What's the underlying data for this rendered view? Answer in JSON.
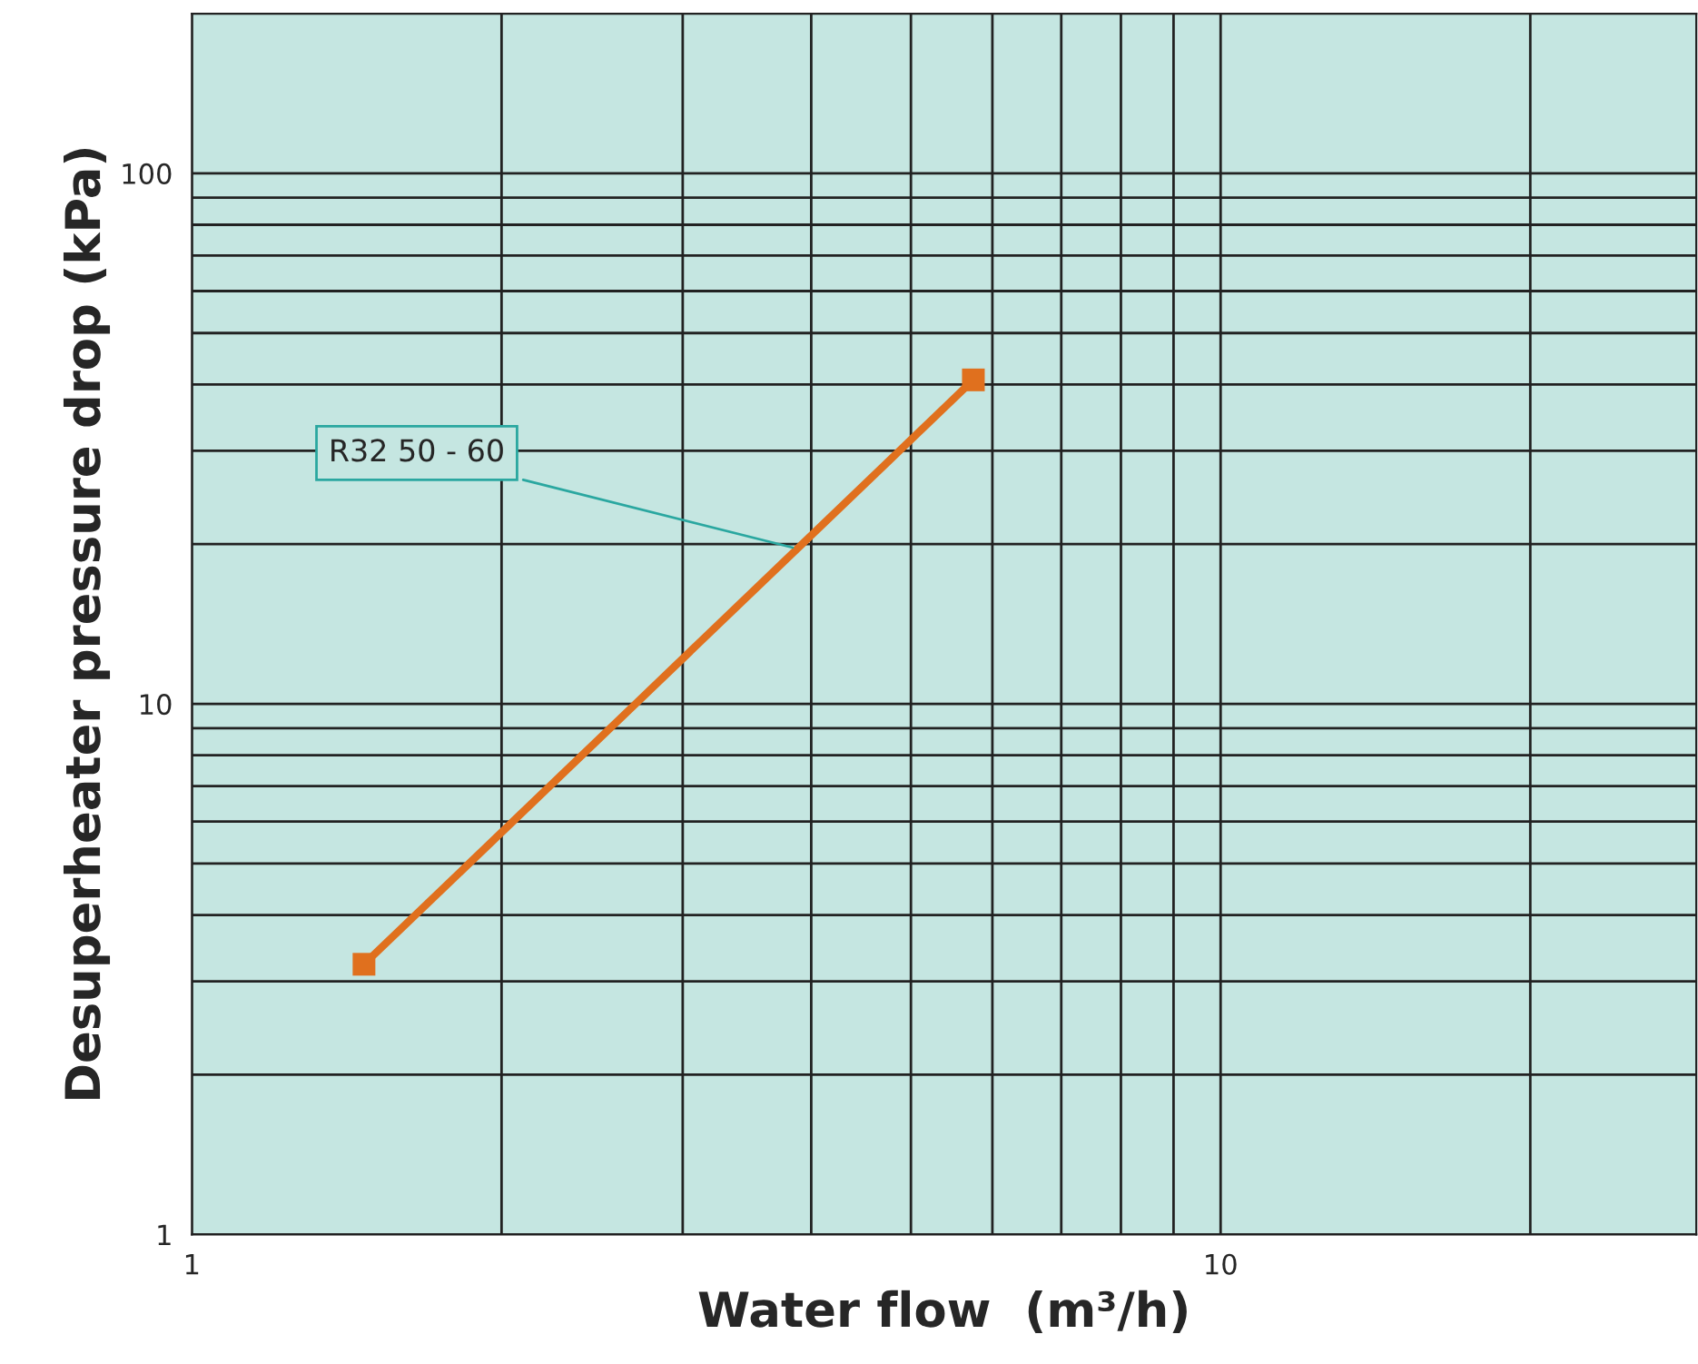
{
  "chart_data": {
    "type": "line",
    "xlabel": "Water flow  (m³/h)",
    "ylabel": "Desuperheater pressure drop (kPa)",
    "log": "xy",
    "x": [
      1.47,
      5.75
    ],
    "series": [
      {
        "color": "#e0701e",
        "values": [
          3.23,
          40.8
        ]
      }
    ],
    "marker": "square",
    "line_style": "solid",
    "grid": true,
    "xlim": [
      1,
      29
    ],
    "ylim": [
      1,
      200
    ],
    "xticks": [
      1,
      {
        "value": 2,
        "label": null
      },
      {
        "value": 3,
        "label": null
      },
      {
        "value": 4,
        "label": null
      },
      {
        "value": 5,
        "label": null
      },
      {
        "value": 6,
        "label": null
      },
      {
        "value": 7,
        "label": null
      },
      {
        "value": 8,
        "label": null
      },
      {
        "value": 9,
        "label": null
      },
      10,
      {
        "value": 20,
        "label": null
      }
    ],
    "yticks": [
      1,
      {
        "value": 2,
        "label": null
      },
      {
        "value": 3,
        "label": null
      },
      {
        "value": 4,
        "label": null
      },
      {
        "value": 5,
        "label": null
      },
      {
        "value": 6,
        "label": null
      },
      {
        "value": 7,
        "label": null
      },
      {
        "value": 8,
        "label": null
      },
      {
        "value": 9,
        "label": null
      },
      10,
      {
        "value": 20,
        "label": null
      },
      {
        "value": 30,
        "label": null
      },
      {
        "value": 40,
        "label": null
      },
      {
        "value": 50,
        "label": null
      },
      {
        "value": 60,
        "label": null
      },
      {
        "value": 70,
        "label": null
      },
      {
        "value": 80,
        "label": null
      },
      {
        "value": 90,
        "label": null
      },
      100
    ],
    "annotations": [
      {
        "text": "R32 50 - 60",
        "x": 3.88,
        "y": 19.6
      }
    ]
  }
}
